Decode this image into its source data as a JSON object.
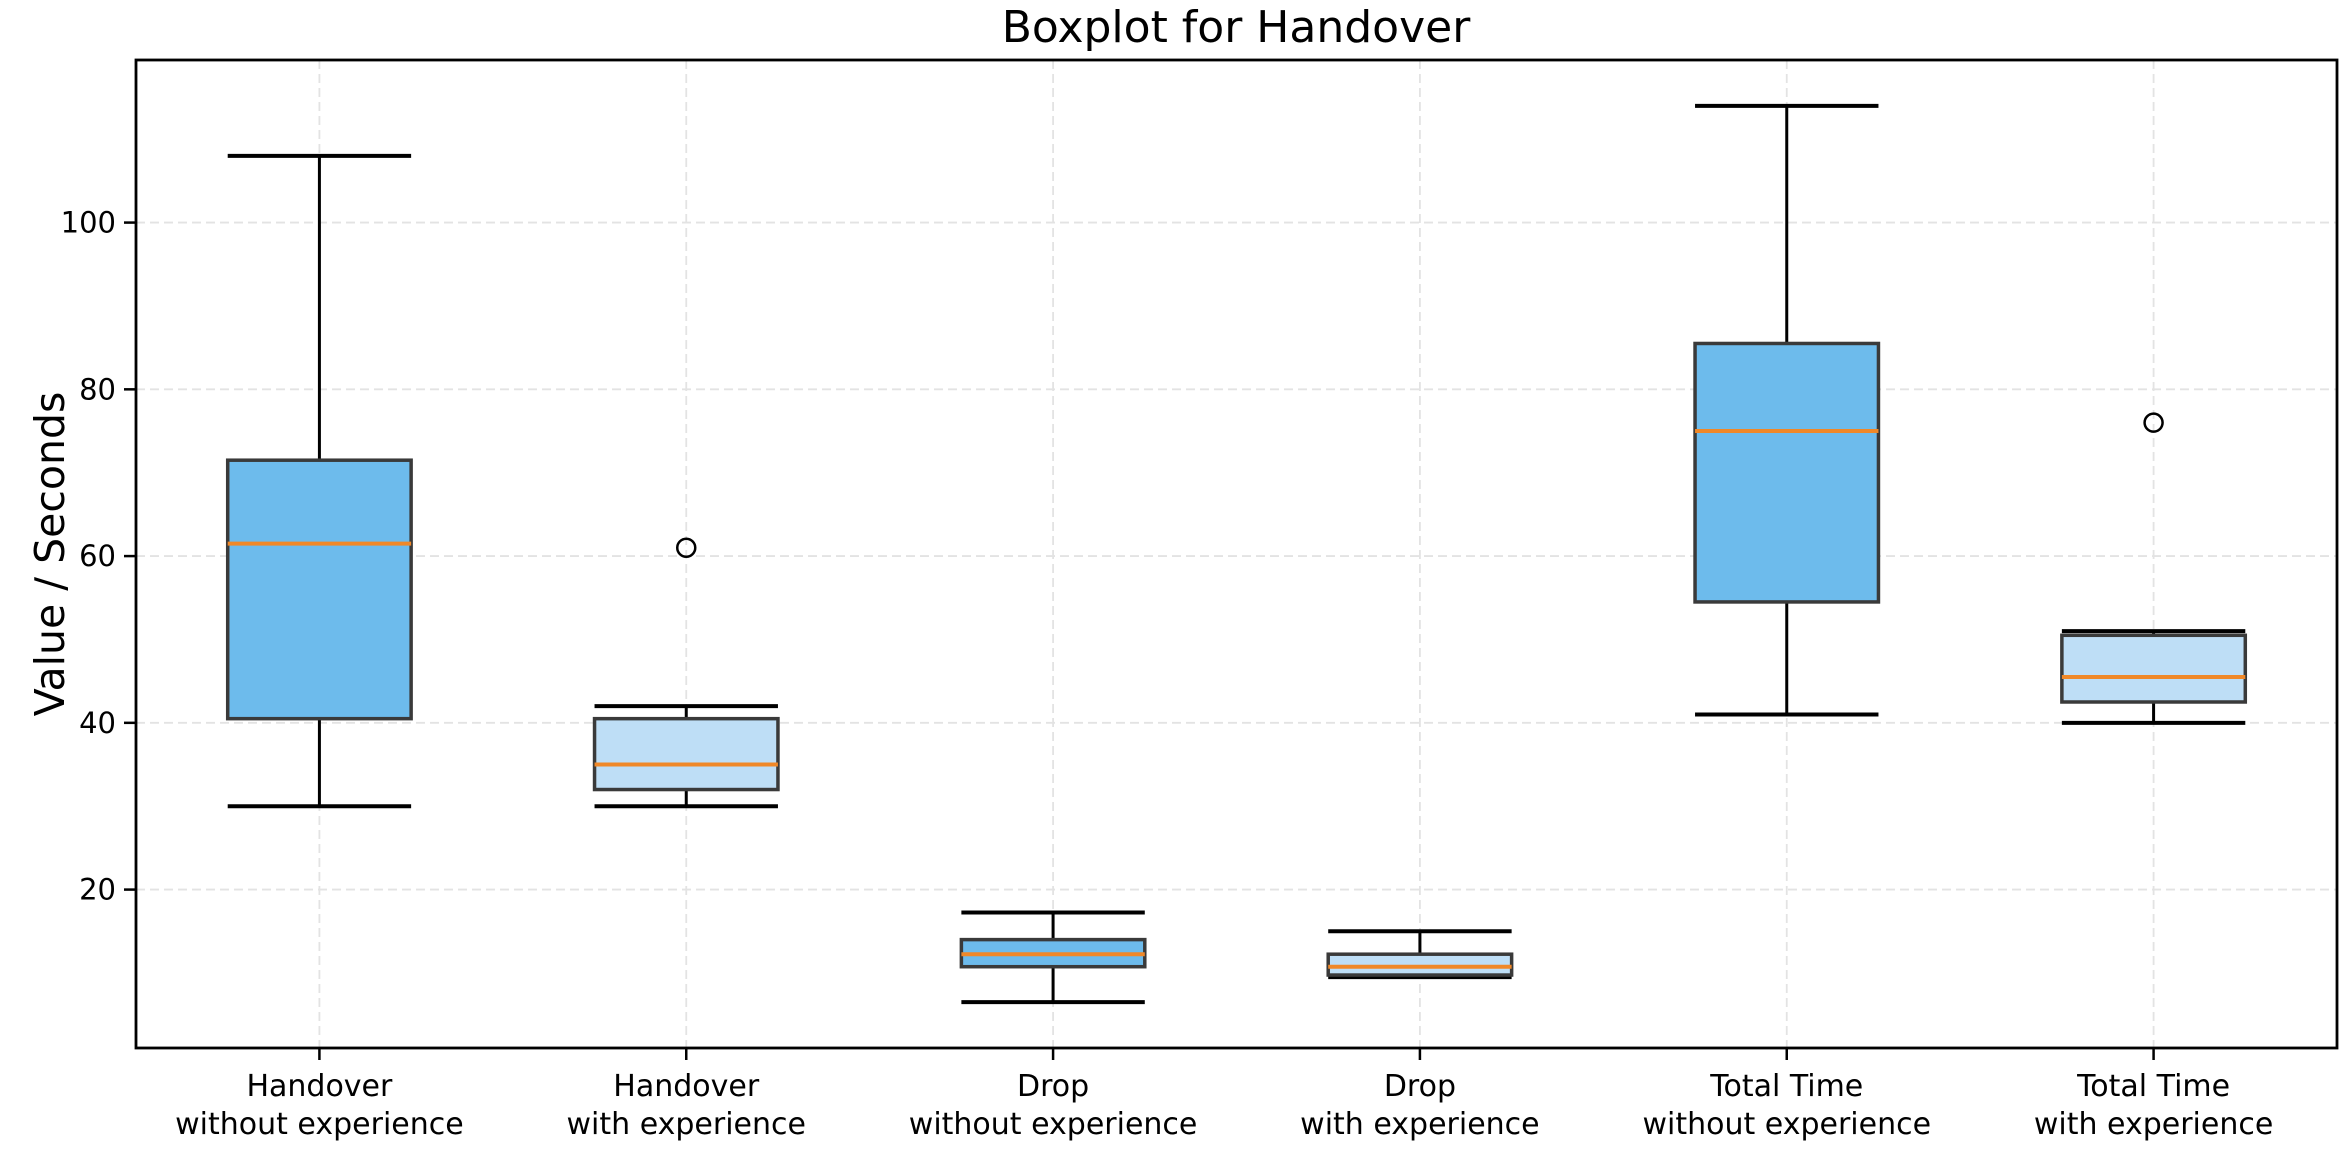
{
  "figure": {
    "title": "Boxplot for Handover",
    "ylabel": "Value / Seconds"
  },
  "chart_data": {
    "type": "boxplot",
    "title": "Boxplot for Handover",
    "xlabel": "",
    "ylabel": "Value / Seconds",
    "ylim": [
      1,
      119.5
    ],
    "yticks": [
      20,
      40,
      60,
      80,
      100
    ],
    "grid": {
      "horizontal": true,
      "vertical": true,
      "style": "dashed",
      "color": "#e3e3e3"
    },
    "legend": null,
    "categories": [
      {
        "line1": "Handover",
        "line2": "without experience"
      },
      {
        "line1": "Handover",
        "line2": "with experience"
      },
      {
        "line1": "Drop",
        "line2": "without experience"
      },
      {
        "line1": "Drop",
        "line2": "with experience"
      },
      {
        "line1": "Total Time",
        "line2": "without experience"
      },
      {
        "line1": "Total Time",
        "line2": "with experience"
      }
    ],
    "series": [
      {
        "name": "Handover without experience",
        "whisker_low": 30,
        "q1": 40.5,
        "median": 61.5,
        "q3": 71.5,
        "whisker_high": 108,
        "outliers": [],
        "fill": "#6dbbec"
      },
      {
        "name": "Handover with experience",
        "whisker_low": 30,
        "q1": 32,
        "median": 35,
        "q3": 40.5,
        "whisker_high": 42,
        "outliers": [
          61
        ],
        "fill": "#bedef6"
      },
      {
        "name": "Drop without experience",
        "whisker_low": 6.5,
        "q1": 10.75,
        "median": 12.25,
        "q3": 14,
        "whisker_high": 17.25,
        "outliers": [],
        "fill": "#6dbbec"
      },
      {
        "name": "Drop with experience",
        "whisker_low": 9.5,
        "q1": 9.75,
        "median": 10.75,
        "q3": 12.25,
        "whisker_high": 15,
        "outliers": [],
        "fill": "#bedef6"
      },
      {
        "name": "Total Time without experience",
        "whisker_low": 41,
        "q1": 54.5,
        "median": 75,
        "q3": 85.5,
        "whisker_high": 114,
        "outliers": [],
        "fill": "#6dbbec"
      },
      {
        "name": "Total Time with experience",
        "whisker_low": 40,
        "q1": 42.5,
        "median": 45.5,
        "q3": 50.5,
        "whisker_high": 51,
        "outliers": [
          76
        ],
        "fill": "#bedef6"
      }
    ],
    "colors": {
      "box_fill_without_experience": "#6dbbec",
      "box_fill_with_experience": "#bedef6",
      "box_edge": "#3a3a3a",
      "median": "#f08828",
      "whisker": "#000000",
      "outlier_edge": "#000000",
      "grid": "#e3e3e3",
      "axis": "#000000",
      "background": "#ffffff"
    }
  }
}
